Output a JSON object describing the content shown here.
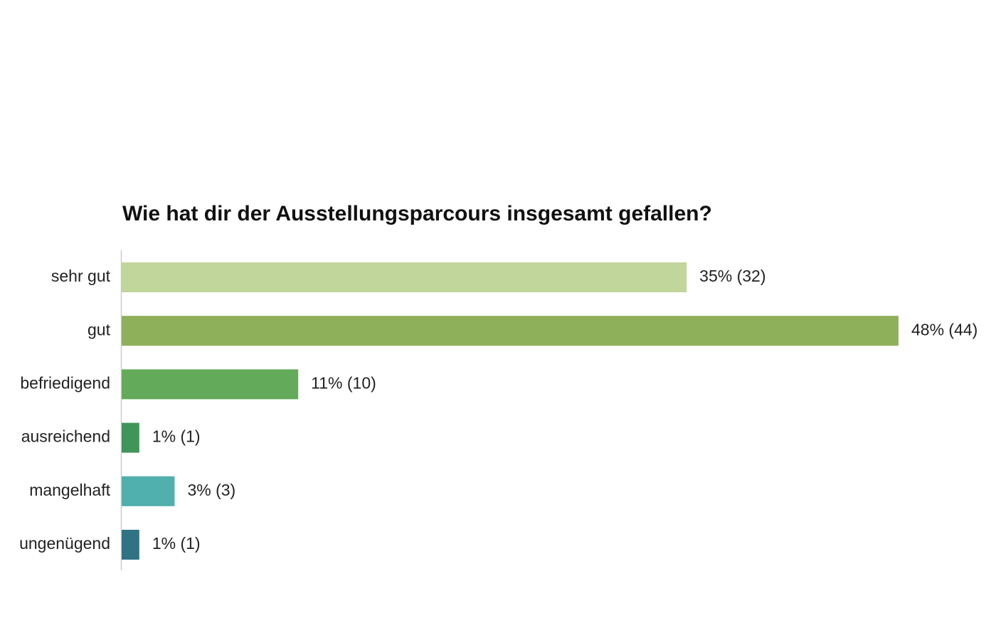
{
  "chart_data": {
    "type": "bar",
    "orientation": "horizontal",
    "title": "Wie hat dir der Ausstellungsparcours insgesamt gefallen?",
    "categories": [
      "sehr gut",
      "gut",
      "befriedigend",
      "ausreichend",
      "mangelhaft",
      "ungenügend"
    ],
    "values": [
      32,
      44,
      10,
      1,
      3,
      1
    ],
    "value_labels": [
      "35% (32)",
      "48% (44)",
      "11% (10)",
      "1% (1)",
      "3% (3)",
      "1% (1)"
    ],
    "colors": [
      "#c1d69b",
      "#8fb05a",
      "#63ab5a",
      "#40955a",
      "#4fb0ad",
      "#2f7384"
    ]
  }
}
